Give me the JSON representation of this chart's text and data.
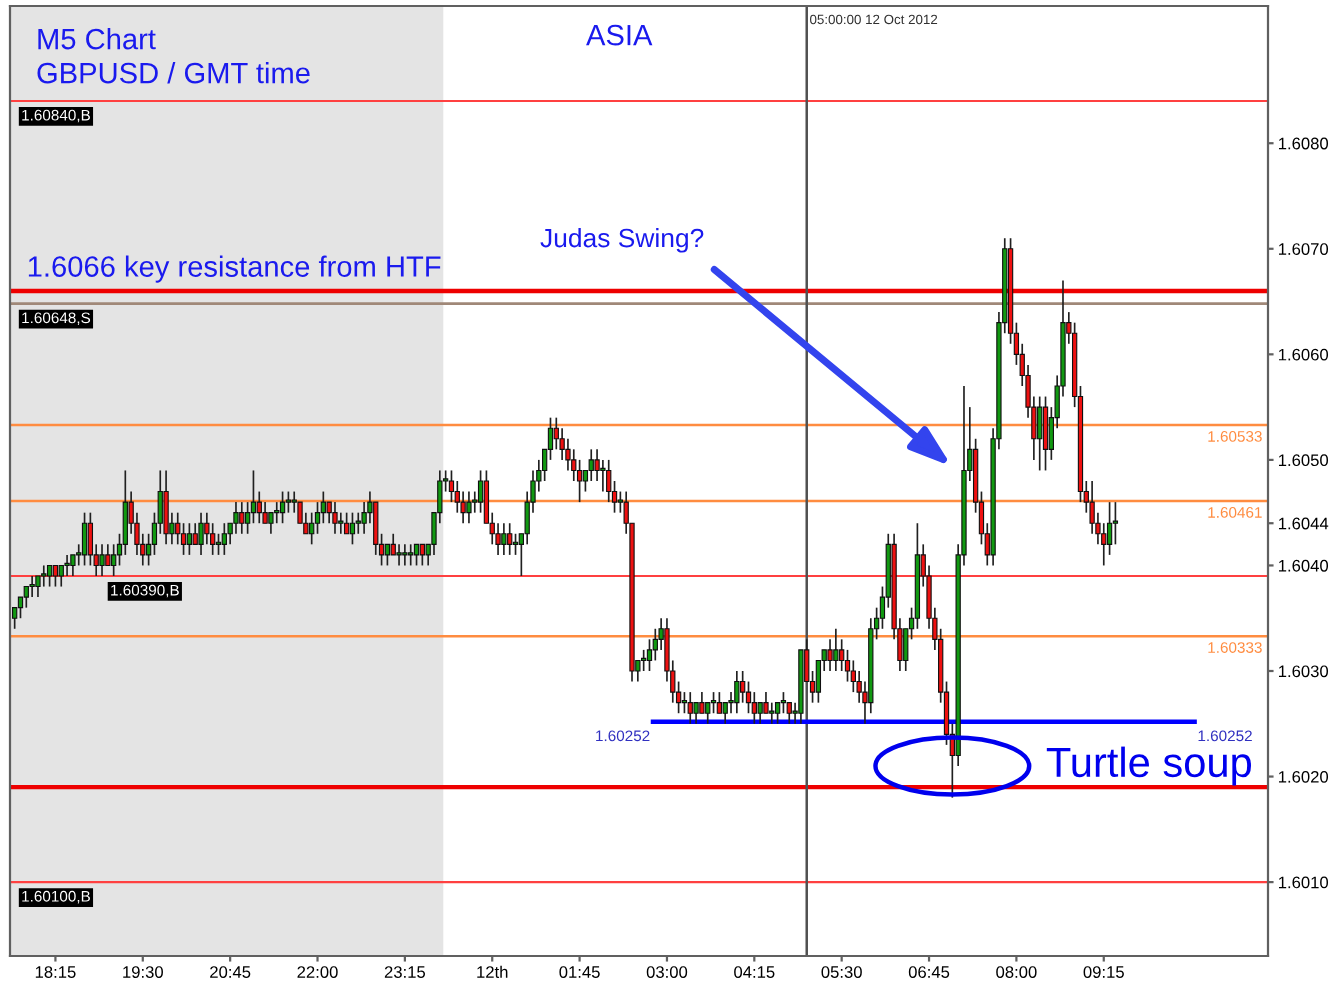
{
  "chart_data": {
    "type": "candlestick",
    "xlim": [
      "2012-10-11T17:36",
      "2012-10-12T11:36"
    ],
    "ylim": [
      1.6003,
      1.6093
    ],
    "xticks": [
      {
        "value": "2012-10-11T18:15",
        "label": "18:15"
      },
      {
        "value": "2012-10-11T19:30",
        "label": "19:30"
      },
      {
        "value": "2012-10-11T20:45",
        "label": "20:45"
      },
      {
        "value": "2012-10-11T22:00",
        "label": "22:00"
      },
      {
        "value": "2012-10-11T23:15",
        "label": "23:15"
      },
      {
        "value": "2012-10-12T00:30",
        "label": "12th"
      },
      {
        "value": "2012-10-12T01:45",
        "label": "01:45"
      },
      {
        "value": "2012-10-12T03:00",
        "label": "03:00"
      },
      {
        "value": "2012-10-12T04:15",
        "label": "04:15"
      },
      {
        "value": "2012-10-12T05:30",
        "label": "05:30"
      },
      {
        "value": "2012-10-12T06:45",
        "label": "06:45"
      },
      {
        "value": "2012-10-12T08:00",
        "label": "08:00"
      },
      {
        "value": "2012-10-12T09:15",
        "label": "09:15"
      }
    ],
    "yticks": [
      {
        "value": 1.601,
        "label": "1.6010"
      },
      {
        "value": 1.602,
        "label": "1.6020"
      },
      {
        "value": 1.603,
        "label": "1.6030"
      },
      {
        "value": 1.604,
        "label": "1.6040"
      },
      {
        "value": 1.6044,
        "label": "1.6044"
      },
      {
        "value": 1.605,
        "label": "1.6050"
      },
      {
        "value": 1.606,
        "label": "1.6060"
      },
      {
        "value": 1.607,
        "label": "1.6070"
      },
      {
        "value": 1.608,
        "label": "1.6080"
      }
    ],
    "grid": false,
    "legend": false,
    "bands": [
      {
        "axis": "x",
        "from": "2012-10-11T17:36",
        "to": "2012-10-11T23:48",
        "color": "#e4e4e4"
      }
    ],
    "ref_lines": [
      {
        "axis": "y",
        "value": 1.6084,
        "label": "1.60840,B",
        "color": "#ff4040"
      },
      {
        "axis": "y",
        "value": 1.6066,
        "label": "1.6066 key resistance from HTF",
        "color": "#ee0000"
      },
      {
        "axis": "y",
        "value": 1.60648,
        "label": "1.60648,S",
        "color": "#a08878"
      },
      {
        "axis": "y",
        "value": 1.60533,
        "label": "1.60533",
        "color": "#ff8c40"
      },
      {
        "axis": "y",
        "value": 1.60461,
        "label": "1.60461",
        "color": "#ff8c40"
      },
      {
        "axis": "y",
        "value": 1.6039,
        "label": "1.60390,B",
        "color": "#ff4040"
      },
      {
        "axis": "y",
        "value": 1.60333,
        "label": "1.60333",
        "color": "#ff8c40"
      },
      {
        "axis": "y",
        "value": 1.6019,
        "color": "#ee0000"
      },
      {
        "axis": "y",
        "value": 1.601,
        "label": "1.60100,B",
        "color": "#ff4040"
      },
      {
        "axis": "x",
        "value": "2012-10-12T05:00",
        "label": "05:00:00 12 Oct 2012",
        "color": "#505050"
      }
    ],
    "annotations": [
      "M5 Chart",
      "GBPUSD / GMT time",
      "ASIA",
      "Judas Swing?",
      {
        "text": "Turtle soup",
        "x": "2012-10-12T07:05",
        "y": 1.6021
      },
      {
        "text": "1.60252",
        "x": "2012-10-12T02:48",
        "y": 1.60252
      },
      {
        "text": "1.60252",
        "x": "2012-10-12T10:33",
        "y": 1.60252
      }
    ],
    "series": [
      {
        "x": [
          "2012-10-11T17:40",
          "2012-10-11T17:45",
          "2012-10-11T17:50",
          "2012-10-11T17:55",
          "2012-10-11T18:00",
          "2012-10-11T18:05",
          "2012-10-11T18:10",
          "2012-10-11T18:15",
          "2012-10-11T18:20",
          "2012-10-11T18:25",
          "2012-10-11T18:30",
          "2012-10-11T18:35",
          "2012-10-11T18:40",
          "2012-10-11T18:45",
          "2012-10-11T18:50",
          "2012-10-11T18:55",
          "2012-10-11T19:00",
          "2012-10-11T19:05",
          "2012-10-11T19:10",
          "2012-10-11T19:15",
          "2012-10-11T19:20",
          "2012-10-11T19:25",
          "2012-10-11T19:30",
          "2012-10-11T19:35",
          "2012-10-11T19:40",
          "2012-10-11T19:45",
          "2012-10-11T19:50",
          "2012-10-11T19:55",
          "2012-10-11T20:00",
          "2012-10-11T20:05",
          "2012-10-11T20:10",
          "2012-10-11T20:15",
          "2012-10-11T20:20",
          "2012-10-11T20:25",
          "2012-10-11T20:30",
          "2012-10-11T20:35",
          "2012-10-11T20:40",
          "2012-10-11T20:45",
          "2012-10-11T20:50",
          "2012-10-11T20:55",
          "2012-10-11T21:00",
          "2012-10-11T21:05",
          "2012-10-11T21:10",
          "2012-10-11T21:15",
          "2012-10-11T21:20",
          "2012-10-11T21:25",
          "2012-10-11T21:30",
          "2012-10-11T21:35",
          "2012-10-11T21:40",
          "2012-10-11T21:45",
          "2012-10-11T21:50",
          "2012-10-11T21:55",
          "2012-10-11T22:00",
          "2012-10-11T22:05",
          "2012-10-11T22:10",
          "2012-10-11T22:15",
          "2012-10-11T22:20",
          "2012-10-11T22:25",
          "2012-10-11T22:30",
          "2012-10-11T22:35",
          "2012-10-11T22:40",
          "2012-10-11T22:45",
          "2012-10-11T22:50",
          "2012-10-11T22:55",
          "2012-10-11T23:00",
          "2012-10-11T23:05",
          "2012-10-11T23:10",
          "2012-10-11T23:15",
          "2012-10-11T23:20",
          "2012-10-11T23:25",
          "2012-10-11T23:30",
          "2012-10-11T23:35",
          "2012-10-11T23:40",
          "2012-10-11T23:45",
          "2012-10-11T23:50",
          "2012-10-11T23:55",
          "2012-10-12T00:00",
          "2012-10-12T00:05",
          "2012-10-12T00:10",
          "2012-10-12T00:15",
          "2012-10-12T00:20",
          "2012-10-12T00:25",
          "2012-10-12T00:30",
          "2012-10-12T00:35",
          "2012-10-12T00:40",
          "2012-10-12T00:45",
          "2012-10-12T00:50",
          "2012-10-12T00:55",
          "2012-10-12T01:00",
          "2012-10-12T01:05",
          "2012-10-12T01:10",
          "2012-10-12T01:15",
          "2012-10-12T01:20",
          "2012-10-12T01:25",
          "2012-10-12T01:30",
          "2012-10-12T01:35",
          "2012-10-12T01:40",
          "2012-10-12T01:45",
          "2012-10-12T01:50",
          "2012-10-12T01:55",
          "2012-10-12T02:00",
          "2012-10-12T02:05",
          "2012-10-12T02:10",
          "2012-10-12T02:15",
          "2012-10-12T02:20",
          "2012-10-12T02:25",
          "2012-10-12T02:30",
          "2012-10-12T02:35",
          "2012-10-12T02:40",
          "2012-10-12T02:45",
          "2012-10-12T02:50",
          "2012-10-12T02:55",
          "2012-10-12T03:00",
          "2012-10-12T03:05",
          "2012-10-12T03:10",
          "2012-10-12T03:15",
          "2012-10-12T03:20",
          "2012-10-12T03:25",
          "2012-10-12T03:30",
          "2012-10-12T03:35",
          "2012-10-12T03:40",
          "2012-10-12T03:45",
          "2012-10-12T03:50",
          "2012-10-12T03:55",
          "2012-10-12T04:00",
          "2012-10-12T04:05",
          "2012-10-12T04:10",
          "2012-10-12T04:15",
          "2012-10-12T04:20",
          "2012-10-12T04:25",
          "2012-10-12T04:30",
          "2012-10-12T04:35",
          "2012-10-12T04:40",
          "2012-10-12T04:45",
          "2012-10-12T04:50",
          "2012-10-12T04:55",
          "2012-10-12T05:00",
          "2012-10-12T05:05",
          "2012-10-12T05:10",
          "2012-10-12T05:15",
          "2012-10-12T05:20",
          "2012-10-12T05:25",
          "2012-10-12T05:30",
          "2012-10-12T05:35",
          "2012-10-12T05:40",
          "2012-10-12T05:45",
          "2012-10-12T05:50",
          "2012-10-12T05:55",
          "2012-10-12T06:00",
          "2012-10-12T06:05",
          "2012-10-12T06:10",
          "2012-10-12T06:15",
          "2012-10-12T06:20",
          "2012-10-12T06:25",
          "2012-10-12T06:30",
          "2012-10-12T06:35",
          "2012-10-12T06:40",
          "2012-10-12T06:45",
          "2012-10-12T06:50",
          "2012-10-12T06:55",
          "2012-10-12T07:00",
          "2012-10-12T07:05",
          "2012-10-12T07:10",
          "2012-10-12T07:15",
          "2012-10-12T07:20",
          "2012-10-12T07:25",
          "2012-10-12T07:30",
          "2012-10-12T07:35",
          "2012-10-12T07:40",
          "2012-10-12T07:45",
          "2012-10-12T07:50",
          "2012-10-12T07:55",
          "2012-10-12T08:00",
          "2012-10-12T08:05",
          "2012-10-12T08:10",
          "2012-10-12T08:15",
          "2012-10-12T08:20",
          "2012-10-12T08:25",
          "2012-10-12T08:30",
          "2012-10-12T08:35",
          "2012-10-12T08:40",
          "2012-10-12T08:45",
          "2012-10-12T08:50",
          "2012-10-12T08:55",
          "2012-10-12T09:00",
          "2012-10-12T09:05",
          "2012-10-12T09:10",
          "2012-10-12T09:15",
          "2012-10-12T09:20",
          "2012-10-12T09:25"
        ],
        "ohlc": [
          [
            1.6035,
            1.6036,
            1.6034,
            1.6036
          ],
          [
            1.6036,
            1.6037,
            1.6035,
            1.6037
          ],
          [
            1.6037,
            1.6038,
            1.6036,
            1.6038
          ],
          [
            1.6038,
            1.6039,
            1.6037,
            1.6038
          ],
          [
            1.6038,
            1.6039,
            1.6037,
            1.6039
          ],
          [
            1.6039,
            1.604,
            1.6038,
            1.6039
          ],
          [
            1.6039,
            1.604,
            1.6038,
            1.604
          ],
          [
            1.604,
            1.604,
            1.6038,
            1.6039
          ],
          [
            1.6039,
            1.604,
            1.6038,
            1.604
          ],
          [
            1.604,
            1.6041,
            1.6039,
            1.604
          ],
          [
            1.604,
            1.6041,
            1.6039,
            1.6041
          ],
          [
            1.6041,
            1.6042,
            1.604,
            1.6041
          ],
          [
            1.6041,
            1.6045,
            1.604,
            1.6044
          ],
          [
            1.6044,
            1.6045,
            1.604,
            1.6041
          ],
          [
            1.6041,
            1.6042,
            1.6039,
            1.604
          ],
          [
            1.604,
            1.6042,
            1.6039,
            1.6041
          ],
          [
            1.6041,
            1.6042,
            1.604,
            1.604
          ],
          [
            1.604,
            1.6042,
            1.6039,
            1.6041
          ],
          [
            1.6041,
            1.6043,
            1.604,
            1.6042
          ],
          [
            1.6042,
            1.6049,
            1.6041,
            1.6046
          ],
          [
            1.6046,
            1.6047,
            1.6043,
            1.6044
          ],
          [
            1.6044,
            1.6045,
            1.6041,
            1.6042
          ],
          [
            1.6042,
            1.6043,
            1.604,
            1.6041
          ],
          [
            1.6041,
            1.6043,
            1.604,
            1.6042
          ],
          [
            1.6042,
            1.6045,
            1.6041,
            1.6044
          ],
          [
            1.6044,
            1.6049,
            1.6043,
            1.6047
          ],
          [
            1.6047,
            1.6049,
            1.6042,
            1.6043
          ],
          [
            1.6043,
            1.6045,
            1.6042,
            1.6044
          ],
          [
            1.6044,
            1.6045,
            1.6042,
            1.6043
          ],
          [
            1.6043,
            1.6044,
            1.6041,
            1.6042
          ],
          [
            1.6042,
            1.6044,
            1.6041,
            1.6043
          ],
          [
            1.6043,
            1.6044,
            1.6042,
            1.6042
          ],
          [
            1.6042,
            1.6045,
            1.6041,
            1.6044
          ],
          [
            1.6044,
            1.6045,
            1.6042,
            1.6043
          ],
          [
            1.6043,
            1.6044,
            1.6041,
            1.6042
          ],
          [
            1.6042,
            1.6043,
            1.6041,
            1.6042
          ],
          [
            1.6042,
            1.6044,
            1.6041,
            1.6043
          ],
          [
            1.6043,
            1.6044,
            1.6042,
            1.6044
          ],
          [
            1.6044,
            1.6046,
            1.6043,
            1.6045
          ],
          [
            1.6045,
            1.6046,
            1.6043,
            1.6044
          ],
          [
            1.6044,
            1.6046,
            1.6043,
            1.6045
          ],
          [
            1.6045,
            1.6049,
            1.6044,
            1.6046
          ],
          [
            1.6046,
            1.6047,
            1.6044,
            1.6045
          ],
          [
            1.6045,
            1.6046,
            1.6044,
            1.6044
          ],
          [
            1.6044,
            1.6045,
            1.6043,
            1.6045
          ],
          [
            1.6045,
            1.6046,
            1.6044,
            1.6045
          ],
          [
            1.6045,
            1.6047,
            1.6044,
            1.6046
          ],
          [
            1.6046,
            1.6047,
            1.6045,
            1.6046
          ],
          [
            1.6046,
            1.6047,
            1.6045,
            1.6046
          ],
          [
            1.6046,
            1.6046,
            1.6044,
            1.6044
          ],
          [
            1.6044,
            1.6045,
            1.6043,
            1.6043
          ],
          [
            1.6043,
            1.6045,
            1.6042,
            1.6044
          ],
          [
            1.6044,
            1.6046,
            1.6043,
            1.6045
          ],
          [
            1.6045,
            1.6047,
            1.6044,
            1.6046
          ],
          [
            1.6046,
            1.6046,
            1.6044,
            1.6045
          ],
          [
            1.6045,
            1.6046,
            1.6043,
            1.6044
          ],
          [
            1.6044,
            1.6045,
            1.6043,
            1.6044
          ],
          [
            1.6044,
            1.6045,
            1.6043,
            1.6043
          ],
          [
            1.6043,
            1.6045,
            1.6042,
            1.6044
          ],
          [
            1.6044,
            1.6045,
            1.6043,
            1.6044
          ],
          [
            1.6044,
            1.6046,
            1.6043,
            1.6045
          ],
          [
            1.6045,
            1.6047,
            1.6044,
            1.6046
          ],
          [
            1.6046,
            1.6046,
            1.6041,
            1.6042
          ],
          [
            1.6042,
            1.6043,
            1.604,
            1.6041
          ],
          [
            1.6041,
            1.6042,
            1.604,
            1.6042
          ],
          [
            1.6042,
            1.6043,
            1.6041,
            1.6041
          ],
          [
            1.6041,
            1.6042,
            1.604,
            1.6041
          ],
          [
            1.6041,
            1.6042,
            1.604,
            1.6041
          ],
          [
            1.6041,
            1.6042,
            1.604,
            1.6041
          ],
          [
            1.6041,
            1.6042,
            1.604,
            1.6042
          ],
          [
            1.6042,
            1.6042,
            1.604,
            1.6041
          ],
          [
            1.6041,
            1.6042,
            1.604,
            1.6042
          ],
          [
            1.6042,
            1.6045,
            1.6041,
            1.6045
          ],
          [
            1.6045,
            1.6049,
            1.6044,
            1.6048
          ],
          [
            1.6048,
            1.6049,
            1.6047,
            1.6048
          ],
          [
            1.6048,
            1.6049,
            1.6046,
            1.6047
          ],
          [
            1.6047,
            1.6048,
            1.6045,
            1.6046
          ],
          [
            1.6046,
            1.6047,
            1.6044,
            1.6045
          ],
          [
            1.6045,
            1.6047,
            1.6044,
            1.6046
          ],
          [
            1.6046,
            1.6047,
            1.6045,
            1.6046
          ],
          [
            1.6046,
            1.6049,
            1.6045,
            1.6048
          ],
          [
            1.6048,
            1.6049,
            1.6044,
            1.6044
          ],
          [
            1.6044,
            1.6045,
            1.6042,
            1.6043
          ],
          [
            1.6043,
            1.6044,
            1.6041,
            1.6042
          ],
          [
            1.6042,
            1.6044,
            1.6041,
            1.6043
          ],
          [
            1.6043,
            1.6044,
            1.6041,
            1.6042
          ],
          [
            1.6042,
            1.6043,
            1.6041,
            1.6042
          ],
          [
            1.6042,
            1.6043,
            1.6039,
            1.6043
          ],
          [
            1.6043,
            1.6047,
            1.6042,
            1.6046
          ],
          [
            1.6046,
            1.6049,
            1.6045,
            1.6048
          ],
          [
            1.6048,
            1.605,
            1.6047,
            1.6049
          ],
          [
            1.6049,
            1.6051,
            1.6048,
            1.6051
          ],
          [
            1.6051,
            1.6054,
            1.605,
            1.6053
          ],
          [
            1.6053,
            1.6054,
            1.6051,
            1.6052
          ],
          [
            1.6052,
            1.6053,
            1.605,
            1.6051
          ],
          [
            1.6051,
            1.6052,
            1.6049,
            1.605
          ],
          [
            1.605,
            1.6051,
            1.6048,
            1.6049
          ],
          [
            1.6049,
            1.605,
            1.6046,
            1.6048
          ],
          [
            1.6048,
            1.6049,
            1.6047,
            1.6049
          ],
          [
            1.6049,
            1.6051,
            1.6048,
            1.605
          ],
          [
            1.605,
            1.6051,
            1.6048,
            1.6049
          ],
          [
            1.6049,
            1.605,
            1.6047,
            1.6049
          ],
          [
            1.6049,
            1.605,
            1.6046,
            1.6047
          ],
          [
            1.6047,
            1.6048,
            1.6045,
            1.6046
          ],
          [
            1.6046,
            1.6047,
            1.6045,
            1.6046
          ],
          [
            1.6046,
            1.6047,
            1.6043,
            1.6044
          ],
          [
            1.6044,
            1.6044,
            1.6029,
            1.603
          ],
          [
            1.603,
            1.6031,
            1.6029,
            1.6031
          ],
          [
            1.6031,
            1.6032,
            1.603,
            1.6031
          ],
          [
            1.6031,
            1.6033,
            1.603,
            1.6032
          ],
          [
            1.6032,
            1.6034,
            1.6031,
            1.6033
          ],
          [
            1.6033,
            1.6035,
            1.6032,
            1.6034
          ],
          [
            1.6034,
            1.6035,
            1.6029,
            1.603
          ],
          [
            1.603,
            1.6031,
            1.6027,
            1.6028
          ],
          [
            1.6028,
            1.6029,
            1.6026,
            1.6027
          ],
          [
            1.6027,
            1.6028,
            1.6026,
            1.6027
          ],
          [
            1.6027,
            1.6028,
            1.6025,
            1.6026
          ],
          [
            1.6026,
            1.6027,
            1.6025,
            1.6027
          ],
          [
            1.6027,
            1.6028,
            1.6026,
            1.6026
          ],
          [
            1.6026,
            1.6027,
            1.6025,
            1.6027
          ],
          [
            1.6027,
            1.6028,
            1.6026,
            1.6027
          ],
          [
            1.6027,
            1.6028,
            1.6026,
            1.6026
          ],
          [
            1.6026,
            1.6027,
            1.6025,
            1.6027
          ],
          [
            1.6027,
            1.6028,
            1.6026,
            1.6027
          ],
          [
            1.6027,
            1.603,
            1.6026,
            1.6029
          ],
          [
            1.6029,
            1.603,
            1.6027,
            1.6028
          ],
          [
            1.6028,
            1.6029,
            1.6026,
            1.6027
          ],
          [
            1.6027,
            1.6028,
            1.6025,
            1.6026
          ],
          [
            1.6026,
            1.6027,
            1.6025,
            1.6027
          ],
          [
            1.6027,
            1.6028,
            1.6026,
            1.6026
          ],
          [
            1.6026,
            1.6027,
            1.6025,
            1.6026
          ],
          [
            1.6026,
            1.6027,
            1.6025,
            1.6027
          ],
          [
            1.6027,
            1.6028,
            1.6026,
            1.6027
          ],
          [
            1.6027,
            1.6027,
            1.6025,
            1.6026
          ],
          [
            1.6026,
            1.6027,
            1.6025,
            1.6026
          ],
          [
            1.6026,
            1.6032,
            1.6025,
            1.6032
          ],
          [
            1.6032,
            1.6033,
            1.6029,
            1.6029
          ],
          [
            1.6029,
            1.603,
            1.6027,
            1.6028
          ],
          [
            1.6028,
            1.6031,
            1.6027,
            1.6031
          ],
          [
            1.6031,
            1.6032,
            1.603,
            1.6032
          ],
          [
            1.6032,
            1.6033,
            1.603,
            1.6031
          ],
          [
            1.6031,
            1.6034,
            1.603,
            1.6032
          ],
          [
            1.6032,
            1.6033,
            1.603,
            1.6031
          ],
          [
            1.6031,
            1.6032,
            1.6029,
            1.603
          ],
          [
            1.603,
            1.6031,
            1.6028,
            1.6029
          ],
          [
            1.6029,
            1.603,
            1.6027,
            1.6028
          ],
          [
            1.6028,
            1.6029,
            1.6025,
            1.6027
          ],
          [
            1.6027,
            1.6035,
            1.6026,
            1.6034
          ],
          [
            1.6034,
            1.6036,
            1.6033,
            1.6035
          ],
          [
            1.6035,
            1.6038,
            1.6034,
            1.6037
          ],
          [
            1.6037,
            1.6043,
            1.6036,
            1.6042
          ],
          [
            1.6042,
            1.6043,
            1.6033,
            1.6034
          ],
          [
            1.6034,
            1.6035,
            1.603,
            1.6031
          ],
          [
            1.6031,
            1.6034,
            1.603,
            1.6034
          ],
          [
            1.6034,
            1.6036,
            1.6033,
            1.6035
          ],
          [
            1.6035,
            1.6044,
            1.6034,
            1.6041
          ],
          [
            1.6041,
            1.6042,
            1.6038,
            1.6039
          ],
          [
            1.6039,
            1.604,
            1.6034,
            1.6035
          ],
          [
            1.6035,
            1.6036,
            1.6032,
            1.6033
          ],
          [
            1.6033,
            1.6034,
            1.6027,
            1.6028
          ],
          [
            1.6028,
            1.6029,
            1.6023,
            1.6024
          ],
          [
            1.6024,
            1.6025,
            1.6018,
            1.6022
          ],
          [
            1.6022,
            1.6042,
            1.6021,
            1.6041
          ],
          [
            1.6041,
            1.6057,
            1.604,
            1.6049
          ],
          [
            1.6049,
            1.6055,
            1.6048,
            1.6051
          ],
          [
            1.6051,
            1.6052,
            1.6045,
            1.6046
          ],
          [
            1.6046,
            1.6047,
            1.6042,
            1.6043
          ],
          [
            1.6043,
            1.6044,
            1.604,
            1.6041
          ],
          [
            1.6041,
            1.6053,
            1.604,
            1.6052
          ],
          [
            1.6052,
            1.6064,
            1.6051,
            1.6063
          ],
          [
            1.6063,
            1.6071,
            1.6062,
            1.607
          ],
          [
            1.607,
            1.6071,
            1.6061,
            1.6062
          ],
          [
            1.6062,
            1.6063,
            1.6059,
            1.606
          ],
          [
            1.606,
            1.6061,
            1.6057,
            1.6058
          ],
          [
            1.6058,
            1.6059,
            1.6054,
            1.6055
          ],
          [
            1.6055,
            1.6056,
            1.605,
            1.6052
          ],
          [
            1.6052,
            1.6056,
            1.6049,
            1.6055
          ],
          [
            1.6055,
            1.6056,
            1.6049,
            1.6051
          ],
          [
            1.6051,
            1.6055,
            1.605,
            1.6054
          ],
          [
            1.6054,
            1.6058,
            1.6053,
            1.6057
          ],
          [
            1.6057,
            1.6067,
            1.6056,
            1.6063
          ],
          [
            1.6063,
            1.6064,
            1.6061,
            1.6062
          ],
          [
            1.6062,
            1.6063,
            1.6055,
            1.6056
          ],
          [
            1.6056,
            1.6057,
            1.6046,
            1.6047
          ],
          [
            1.6047,
            1.6048,
            1.6045,
            1.6046
          ],
          [
            1.6046,
            1.6048,
            1.6043,
            1.6044
          ],
          [
            1.6044,
            1.6045,
            1.6042,
            1.6043
          ],
          [
            1.6043,
            1.6044,
            1.604,
            1.6042
          ],
          [
            1.6042,
            1.6046,
            1.6041,
            1.6044
          ],
          [
            1.6044,
            1.6046,
            1.6042,
            1.6044
          ]
        ]
      },
      {
        "type": "line",
        "x": [
          "2012-10-12T02:48",
          "2012-10-12T10:33"
        ],
        "values": [
          1.60252,
          1.60252
        ],
        "color": "#0000ff"
      }
    ]
  }
}
